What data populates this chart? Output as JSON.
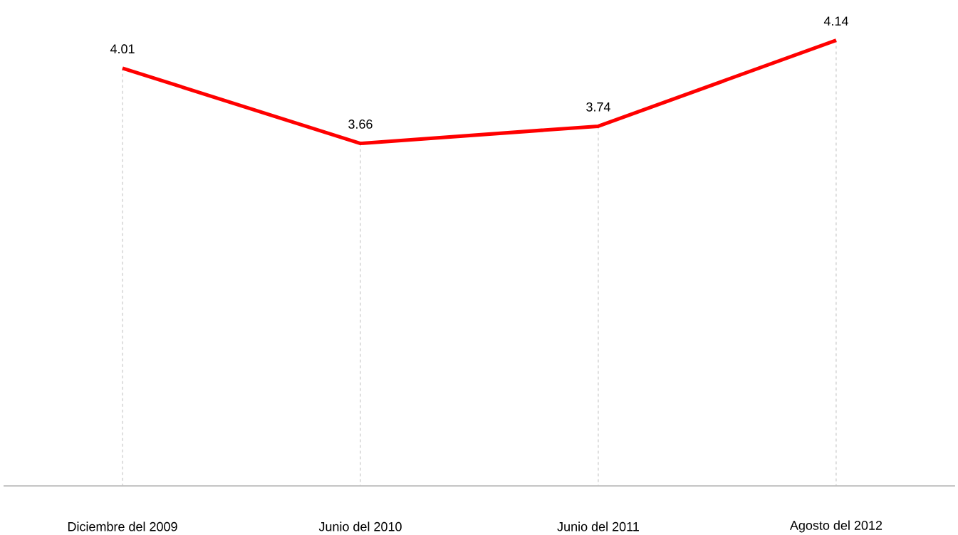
{
  "chart_data": {
    "type": "line",
    "categories": [
      "Diciembre del 2009",
      "Junio del 2010",
      "Junio del 2011",
      "Agosto del 2012"
    ],
    "values": [
      4.01,
      3.66,
      3.74,
      4.14
    ],
    "color": "#ff0000",
    "tick_labels": "x",
    "grid": "x",
    "data_labels": true
  }
}
